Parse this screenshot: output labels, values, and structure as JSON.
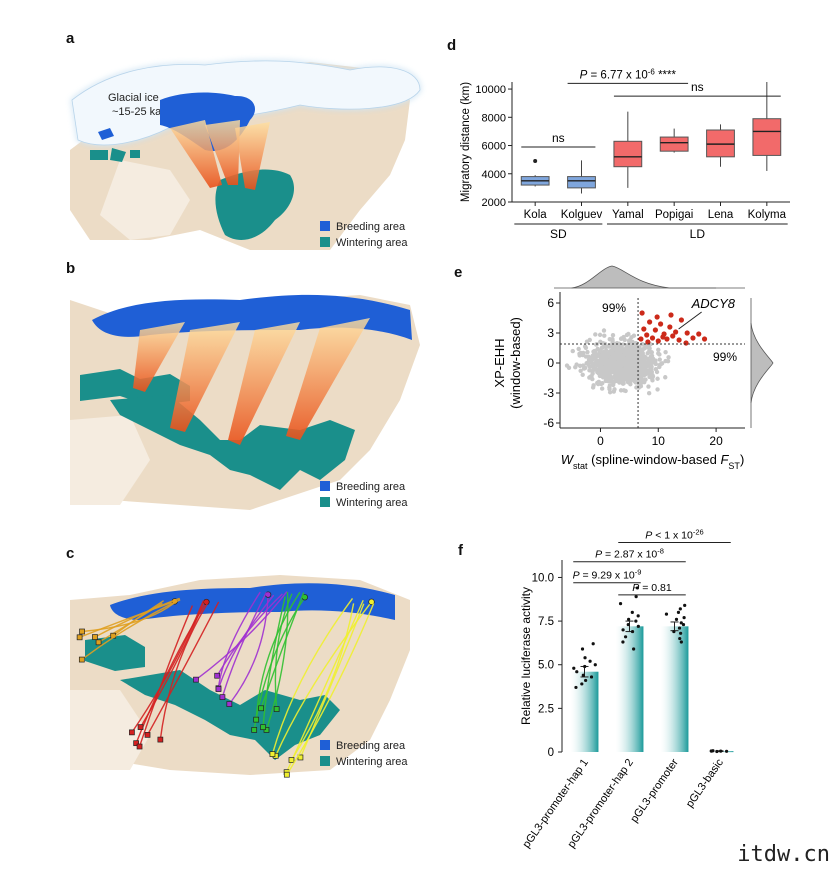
{
  "panels": {
    "a": {
      "letter": "a",
      "glacial_line1": "Glacial ice",
      "glacial_line2": "~15-25 ka",
      "legend": [
        {
          "label": "Breeding area",
          "color": "#1f5fd6"
        },
        {
          "label": "Wintering area",
          "color": "#1a8f8b"
        }
      ]
    },
    "b": {
      "letter": "b",
      "legend": [
        {
          "label": "Breeding area",
          "color": "#1f5fd6"
        },
        {
          "label": "Wintering area",
          "color": "#1a8f8b"
        }
      ]
    },
    "c": {
      "letter": "c",
      "legend": [
        {
          "label": "Breeding area",
          "color": "#1f5fd6"
        },
        {
          "label": "Wintering area",
          "color": "#1a8f8b"
        }
      ],
      "track_colors": [
        "#e0a020",
        "#d42020",
        "#a030d0",
        "#30c030",
        "#f0f030"
      ]
    },
    "d": {
      "letter": "d"
    },
    "e": {
      "letter": "e"
    },
    "f": {
      "letter": "f"
    }
  },
  "chart_data": [
    {
      "id": "d",
      "type": "box",
      "ylabel": "Migratory distance (km)",
      "ylim": [
        2000,
        10500
      ],
      "yticks": [
        2000,
        4000,
        6000,
        8000,
        10000
      ],
      "categories": [
        "Kola",
        "Kolguev",
        "Yamal",
        "Popigai",
        "Lena",
        "Kolyma"
      ],
      "groups": [
        {
          "label": "SD",
          "members": [
            "Kola",
            "Kolguev"
          ]
        },
        {
          "label": "LD",
          "members": [
            "Yamal",
            "Popigai",
            "Lena",
            "Kolyma"
          ]
        }
      ],
      "boxes": [
        {
          "name": "Kola",
          "min": 3100,
          "q1": 3200,
          "median": 3500,
          "q3": 3800,
          "max": 3900,
          "outliers": [
            4900
          ],
          "color": "#7fa6dd"
        },
        {
          "name": "Kolguev",
          "min": 2600,
          "q1": 3000,
          "median": 3500,
          "q3": 3800,
          "max": 4950,
          "outliers": [],
          "color": "#7fa6dd"
        },
        {
          "name": "Yamal",
          "min": 3000,
          "q1": 4500,
          "median": 5200,
          "q3": 6300,
          "max": 8400,
          "outliers": [],
          "color": "#f26a6a"
        },
        {
          "name": "Popigai",
          "min": 5500,
          "q1": 5600,
          "median": 6200,
          "q3": 6600,
          "max": 7200,
          "outliers": [],
          "color": "#f26a6a"
        },
        {
          "name": "Lena",
          "min": 4500,
          "q1": 5200,
          "median": 6100,
          "q3": 7100,
          "max": 7500,
          "outliers": [],
          "color": "#f26a6a"
        },
        {
          "name": "Kolyma",
          "min": 4200,
          "q1": 5300,
          "median": 7000,
          "q3": 7900,
          "max": 10500,
          "outliers": [],
          "color": "#f26a6a"
        }
      ],
      "annotations": [
        {
          "text": "ns",
          "from": "Kola",
          "to": "Kolguev",
          "y": 5900
        },
        {
          "text": "ns",
          "from": "Yamal",
          "to": "Kolyma",
          "y": 9500
        },
        {
          "text_prefix": "P",
          "text_value": " = 6.77 x 10",
          "text_exp": "-6",
          "text_stars": " ****",
          "from": "Kolguev",
          "to": "Popigai",
          "y": 10400
        }
      ]
    },
    {
      "id": "e",
      "type": "scatter",
      "xlabel_main": "W",
      "xlabel_sub": "stat",
      "xlabel_rest": " (spline-window-based ",
      "xlabel_f": "F",
      "xlabel_fsub": "ST",
      "xlabel_close": ")",
      "ylabel_line1": "XP-EHH",
      "ylabel_line2": "(window-based)",
      "xlim": [
        -7,
        25
      ],
      "ylim": [
        -6.5,
        6.5
      ],
      "xticks": [
        0,
        10,
        20
      ],
      "yticks": [
        -6,
        -3,
        0,
        3,
        6
      ],
      "x_threshold": 6.5,
      "y_threshold": 1.9,
      "threshold_label_top": "99%",
      "threshold_label_right": "99%",
      "gene_label": "ADCY8",
      "gene_point": [
        13,
        3.1
      ],
      "highlight_color": "#cc2a1a",
      "background_color": "#c8c8c8",
      "highlight_points": [
        [
          7,
          2.4
        ],
        [
          7.5,
          3.4
        ],
        [
          8,
          2.8
        ],
        [
          8.5,
          4.1
        ],
        [
          9,
          2.5
        ],
        [
          9.5,
          3.3
        ],
        [
          10,
          2.2
        ],
        [
          10.4,
          3.9
        ],
        [
          11,
          2.9
        ],
        [
          11.5,
          2.4
        ],
        [
          12,
          3.6
        ],
        [
          12.5,
          2.7
        ],
        [
          13,
          3.1
        ],
        [
          13.6,
          2.3
        ],
        [
          14,
          4.3
        ],
        [
          15,
          3.0
        ],
        [
          16,
          2.5
        ],
        [
          17,
          2.9
        ],
        [
          18,
          2.4
        ],
        [
          7.2,
          5.0
        ],
        [
          8.2,
          2.1
        ],
        [
          9.8,
          4.6
        ],
        [
          10.8,
          2.6
        ],
        [
          12.2,
          4.8
        ],
        [
          14.8,
          2.0
        ]
      ]
    },
    {
      "id": "f",
      "type": "bar",
      "ylabel": "Relative luciferase activity",
      "ylim": [
        0,
        11
      ],
      "yticks": [
        0,
        2.5,
        5.0,
        7.5,
        10.0
      ],
      "ytick_labels": [
        "0",
        "2.5",
        "5.0",
        "7.5",
        "10.0"
      ],
      "categories": [
        "pGL3-promoter-hap 1",
        "pGL3-promoter-hap 2",
        "pGL3-promoter",
        "pGL3-basic"
      ],
      "values": [
        4.6,
        7.2,
        7.2,
        0.05
      ],
      "errors": [
        0.3,
        0.3,
        0.25,
        0.02
      ],
      "points": [
        [
          5.9,
          6.2,
          5.4,
          4.3,
          4.1,
          3.9,
          4.8,
          4.6,
          5.0,
          4.4,
          3.7,
          5.2,
          4.9
        ],
        [
          9.4,
          8.5,
          8.0,
          7.5,
          7.3,
          7.0,
          6.6,
          6.3,
          5.9,
          7.8,
          8.9,
          7.6,
          7.2,
          6.9
        ],
        [
          8.4,
          8.2,
          7.9,
          7.6,
          7.3,
          7.1,
          6.8,
          6.5,
          6.3,
          7.7,
          8.0,
          7.4,
          6.9
        ],
        [
          0.05,
          0.06,
          0.04,
          0.05,
          0.07,
          0.03
        ]
      ],
      "bar_color": "#1a9a9a",
      "annotations": [
        {
          "prefix": "P",
          "value": " = 9.29 x 10",
          "exp": "-9",
          "from": 0,
          "to": 1,
          "y": 9.7
        },
        {
          "prefix": "P",
          "value": " = 2.87 x 10",
          "exp": "-8",
          "from": 0,
          "to": 2,
          "y": 10.9
        },
        {
          "prefix": "P",
          "value": " = 0.81",
          "exp": "",
          "from": 1,
          "to": 2,
          "y": 9.0
        },
        {
          "prefix": "P",
          "value": " < 1 x 10",
          "exp": "-26",
          "from": 1,
          "to": 3,
          "y": 12.0
        }
      ]
    }
  ],
  "watermark": "itdw.cn"
}
